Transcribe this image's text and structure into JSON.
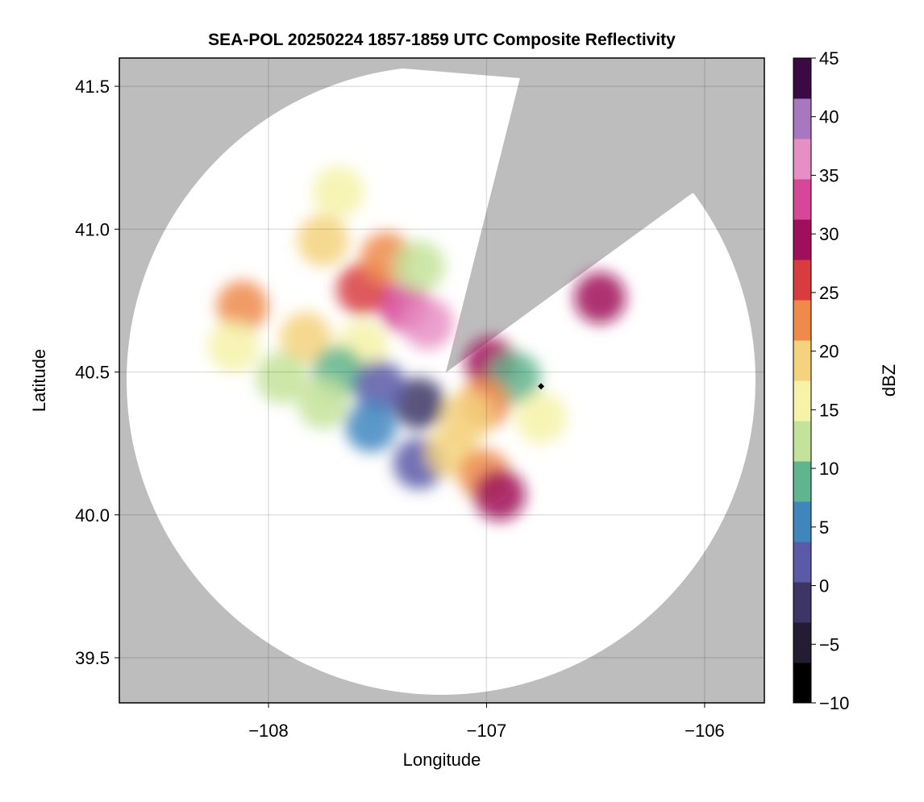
{
  "chart_data": {
    "type": "radar-composite",
    "title": "SEA-POL 20250224 1857-1859 UTC Composite Reflectivity",
    "x_label": "Longitude",
    "y_label": "Latitude",
    "xlim": [
      -108.684,
      -105.726
    ],
    "ylim": [
      39.342,
      41.599
    ],
    "xticks": [
      {
        "value": -108,
        "label": "−108"
      },
      {
        "value": -107,
        "label": "−107"
      },
      {
        "value": -106,
        "label": "−106"
      }
    ],
    "yticks": [
      39.5,
      {
        "value": 40.0,
        "label": "40.0"
      },
      40.5,
      {
        "value": 41.0,
        "label": "41.0"
      },
      41.5
    ],
    "grid": true,
    "colorbar": {
      "label": "dBZ",
      "clim": [
        -10,
        45
      ],
      "ticks": [
        {
          "value": -10,
          "label": "−10"
        },
        {
          "value": -5,
          "label": "−5"
        },
        0,
        5,
        10,
        15,
        20,
        25,
        30,
        35,
        40,
        45
      ],
      "colors": [
        "#000000",
        "#231c33",
        "#3d3566",
        "#5a5aa8",
        "#3f86bf",
        "#5fb58e",
        "#c4e39a",
        "#f6f2a8",
        "#f5d27d",
        "#ef8a4a",
        "#d83c3e",
        "#a0105a",
        "#d6479a",
        "#e78fc4",
        "#a778bf",
        "#3a0a45"
      ]
    },
    "echoes": {
      "x": [
        -107.38,
        -107.27,
        -107.57,
        -107.75,
        -107.46,
        -107.31,
        -107.83,
        -107.57,
        -107.68,
        -107.31,
        -107.49,
        -107.75,
        -107.53,
        -107.31,
        -107.16,
        -107.01,
        -106.94,
        -106.98,
        -106.87,
        -106.75,
        -107.01,
        -106.48,
        -108.12,
        -108.16,
        -107.94,
        -107.68,
        -107.09
      ],
      "y": [
        40.73,
        40.67,
        40.79,
        40.96,
        40.9,
        40.87,
        40.62,
        40.59,
        40.5,
        40.39,
        40.45,
        40.39,
        40.31,
        40.18,
        40.22,
        40.14,
        40.07,
        40.53,
        40.48,
        40.34,
        40.39,
        40.76,
        40.73,
        40.59,
        40.48,
        41.13,
        40.34
      ],
      "values": [
        33,
        38,
        25,
        20,
        22,
        12,
        18,
        16,
        8,
        -3,
        3,
        12,
        6,
        2,
        18,
        21,
        30,
        30,
        8,
        16,
        22,
        28,
        24,
        16,
        14,
        17,
        20
      ]
    },
    "radar_site": {
      "x": -106.75,
      "y": 40.45
    }
  }
}
